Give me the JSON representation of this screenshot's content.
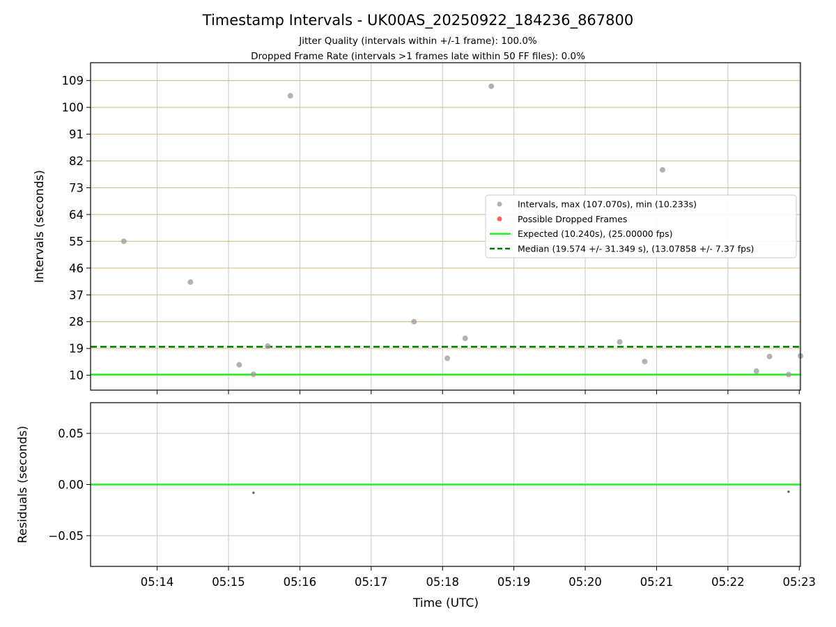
{
  "figure": {
    "title": "Timestamp Intervals - UK00AS_20250922_184236_867800",
    "subtitle_1": "Jitter Quality (intervals within +/-1 frame): 100.0%",
    "subtitle_2": "Dropped Frame Rate (intervals >1 frames late within 50 FF files): 0.0%"
  },
  "chart_data": [
    {
      "type": "scatter",
      "panel": "intervals",
      "ylabel": "Intervals (seconds)",
      "xlabel": "",
      "x_unit": "time (UTC)",
      "xlim": [
        "05:13:04",
        "05:23:01"
      ],
      "ylim": [
        5,
        115
      ],
      "yticks": [
        10,
        19,
        28,
        37,
        46,
        55,
        64,
        73,
        82,
        91,
        100,
        109
      ],
      "xticks": [
        "05:14",
        "05:15",
        "05:16",
        "05:17",
        "05:18",
        "05:19",
        "05:20",
        "05:21",
        "05:22",
        "05:23"
      ],
      "grid": true,
      "legend_position": "center-right",
      "series": [
        {
          "name": "Intervals, max (107.070s), min (10.233s)",
          "color": "#999999",
          "points": [
            {
              "x": "05:13:32",
              "y": 55.0
            },
            {
              "x": "05:14:28",
              "y": 41.3
            },
            {
              "x": "05:15:09",
              "y": 13.5
            },
            {
              "x": "05:15:21",
              "y": 10.3
            },
            {
              "x": "05:15:33",
              "y": 19.8
            },
            {
              "x": "05:15:52",
              "y": 103.9
            },
            {
              "x": "05:17:36",
              "y": 28.0
            },
            {
              "x": "05:18:04",
              "y": 15.7
            },
            {
              "x": "05:18:19",
              "y": 22.4
            },
            {
              "x": "05:18:41",
              "y": 107.1
            },
            {
              "x": "05:20:29",
              "y": 21.2
            },
            {
              "x": "05:20:50",
              "y": 14.6
            },
            {
              "x": "05:21:05",
              "y": 79.0
            },
            {
              "x": "05:22:24",
              "y": 11.4
            },
            {
              "x": "05:22:35",
              "y": 16.3
            },
            {
              "x": "05:22:51",
              "y": 10.23
            },
            {
              "x": "05:23:01",
              "y": 16.5
            }
          ]
        },
        {
          "name": "Possible Dropped Frames",
          "color": "#ff5050",
          "points": []
        }
      ],
      "lines": [
        {
          "name": "Expected (10.240s), (25.00000 fps)",
          "y": 10.24,
          "color": "#22ee22",
          "style": "solid"
        },
        {
          "name": "Median (19.574 +/- 31.349 s), (13.07858 +/- 7.37 fps)",
          "y": 19.574,
          "color": "#007700",
          "style": "dashed"
        }
      ]
    },
    {
      "type": "scatter",
      "panel": "residuals",
      "ylabel": "Residuals (seconds)",
      "xlabel": "Time (UTC)",
      "xlim": [
        "05:13:04",
        "05:23:01"
      ],
      "ylim": [
        -0.08,
        0.08
      ],
      "yticks": [
        0.05,
        0.0,
        -0.05
      ],
      "ytick_labels": [
        "0.05",
        "0.00",
        "−0.05"
      ],
      "xticks": [
        "05:14",
        "05:15",
        "05:16",
        "05:17",
        "05:18",
        "05:19",
        "05:20",
        "05:21",
        "05:22",
        "05:23"
      ],
      "grid": true,
      "series": [
        {
          "color": "#666666",
          "points": [
            {
              "x": "05:15:21",
              "y": -0.008
            },
            {
              "x": "05:22:51",
              "y": -0.007
            }
          ]
        }
      ],
      "lines": [
        {
          "y": 0.0,
          "color": "#22ee22",
          "style": "solid"
        }
      ]
    }
  ]
}
